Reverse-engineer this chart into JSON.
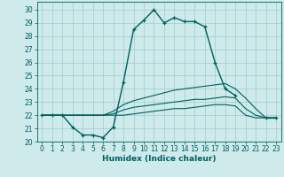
{
  "xlabel": "Humidex (Indice chaleur)",
  "background_color": "#ceeaea",
  "grid_color": "#a0cccc",
  "line_color": "#005f5f",
  "xlim": [
    -0.5,
    23.5
  ],
  "ylim": [
    20,
    30.6
  ],
  "yticks": [
    20,
    21,
    22,
    23,
    24,
    25,
    26,
    27,
    28,
    29,
    30
  ],
  "xticks": [
    0,
    1,
    2,
    3,
    4,
    5,
    6,
    7,
    8,
    9,
    10,
    11,
    12,
    13,
    14,
    15,
    16,
    17,
    18,
    19,
    20,
    21,
    22,
    23
  ],
  "series": [
    {
      "x": [
        0,
        1,
        2,
        3,
        4,
        5,
        6,
        7,
        8,
        9,
        10,
        11,
        12,
        13,
        14,
        15,
        16,
        17,
        18,
        19,
        20,
        22,
        23
      ],
      "y": [
        22,
        22,
        22,
        21.1,
        20.5,
        20.5,
        20.3,
        21.1,
        24.5,
        28.5,
        29.2,
        30,
        29,
        29.4,
        29.1,
        29.1,
        28.7,
        26,
        24,
        23.5,
        null,
        21.8,
        21.8
      ],
      "marker": "+",
      "linewidth": 1.0
    },
    {
      "x": [
        0,
        1,
        2,
        3,
        4,
        5,
        6,
        7,
        8,
        9,
        10,
        11,
        12,
        13,
        14,
        15,
        16,
        17,
        18,
        19,
        20,
        21,
        22,
        23
      ],
      "y": [
        22,
        22,
        22,
        22,
        22,
        22,
        22,
        22.3,
        22.8,
        23.1,
        23.3,
        23.5,
        23.7,
        23.9,
        24.0,
        24.1,
        24.2,
        24.3,
        24.4,
        24.0,
        23.3,
        22.5,
        21.8,
        21.8
      ],
      "marker": null,
      "linewidth": 0.8
    },
    {
      "x": [
        0,
        1,
        2,
        3,
        4,
        5,
        6,
        7,
        8,
        9,
        10,
        11,
        12,
        13,
        14,
        15,
        16,
        17,
        18,
        19,
        20,
        21,
        22,
        23
      ],
      "y": [
        22,
        22,
        22,
        22,
        22,
        22,
        22,
        22.1,
        22.4,
        22.6,
        22.7,
        22.8,
        22.9,
        23.0,
        23.1,
        23.2,
        23.2,
        23.3,
        23.4,
        23.3,
        22.5,
        22.0,
        21.8,
        21.8
      ],
      "marker": null,
      "linewidth": 0.8
    },
    {
      "x": [
        0,
        1,
        2,
        3,
        4,
        5,
        6,
        7,
        8,
        9,
        10,
        11,
        12,
        13,
        14,
        15,
        16,
        17,
        18,
        19,
        20,
        21,
        22,
        23
      ],
      "y": [
        22,
        22,
        22,
        22,
        22,
        22,
        22,
        22,
        22,
        22.1,
        22.2,
        22.3,
        22.4,
        22.5,
        22.5,
        22.6,
        22.7,
        22.8,
        22.8,
        22.7,
        22.0,
        21.8,
        21.8,
        21.8
      ],
      "marker": null,
      "linewidth": 0.8
    }
  ],
  "tick_fontsize": 5.5,
  "xlabel_fontsize": 6.5,
  "xlabel_fontweight": "bold"
}
